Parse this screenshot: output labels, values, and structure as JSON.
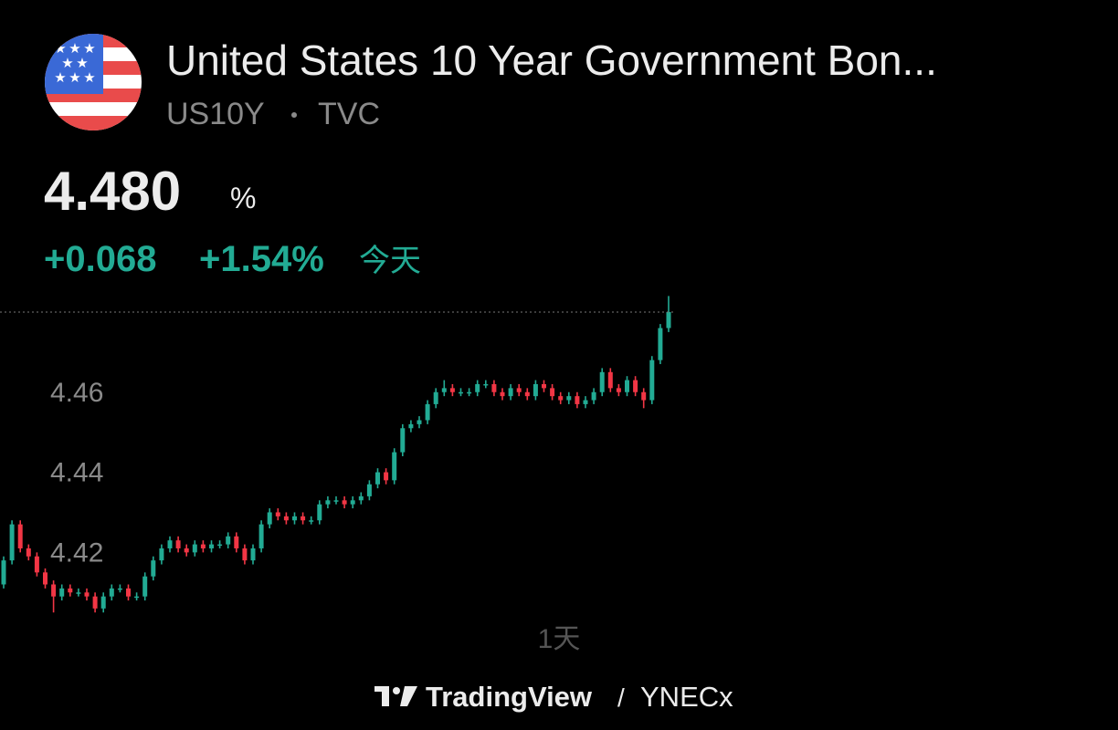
{
  "header": {
    "title": "United States 10 Year Government Bon...",
    "symbol": "US10Y",
    "exchange": "TVC",
    "price": "4.480",
    "unit": "%",
    "change": "+0.068",
    "change_pct": "+1.54%",
    "period": "今天"
  },
  "chart_data": {
    "type": "candlestick",
    "up_color": "#22ab94",
    "down_color": "#f23645",
    "ylim": [
      4.403,
      4.485
    ],
    "yticks": [
      4.42,
      4.44,
      4.46
    ],
    "grid": false,
    "ohlc": [
      [
        4.412,
        4.419,
        4.411,
        4.418
      ],
      [
        4.418,
        4.428,
        4.417,
        4.427
      ],
      [
        4.427,
        4.428,
        4.42,
        4.421
      ],
      [
        4.421,
        4.422,
        4.418,
        4.419
      ],
      [
        4.419,
        4.42,
        4.414,
        4.415
      ],
      [
        4.415,
        4.416,
        4.411,
        4.412
      ],
      [
        4.412,
        4.413,
        4.405,
        4.409
      ],
      [
        4.409,
        4.412,
        4.408,
        4.411
      ],
      [
        4.411,
        4.412,
        4.409,
        4.41
      ],
      [
        4.41,
        4.411,
        4.409,
        4.41
      ],
      [
        4.41,
        4.411,
        4.408,
        4.409
      ],
      [
        4.409,
        4.41,
        4.405,
        4.406
      ],
      [
        4.406,
        4.41,
        4.405,
        4.409
      ],
      [
        4.409,
        4.412,
        4.408,
        4.411
      ],
      [
        4.411,
        4.412,
        4.41,
        4.411
      ],
      [
        4.411,
        4.412,
        4.408,
        4.409
      ],
      [
        4.409,
        4.41,
        4.408,
        4.409
      ],
      [
        4.409,
        4.415,
        4.408,
        4.414
      ],
      [
        4.414,
        4.419,
        4.413,
        4.418
      ],
      [
        4.418,
        4.422,
        4.417,
        4.421
      ],
      [
        4.421,
        4.424,
        4.42,
        4.423
      ],
      [
        4.423,
        4.424,
        4.42,
        4.421
      ],
      [
        4.421,
        4.422,
        4.419,
        4.42
      ],
      [
        4.42,
        4.423,
        4.419,
        4.422
      ],
      [
        4.422,
        4.423,
        4.42,
        4.421
      ],
      [
        4.421,
        4.423,
        4.42,
        4.422
      ],
      [
        4.422,
        4.423,
        4.421,
        4.422
      ],
      [
        4.422,
        4.425,
        4.421,
        4.424
      ],
      [
        4.424,
        4.425,
        4.42,
        4.421
      ],
      [
        4.421,
        4.422,
        4.417,
        4.418
      ],
      [
        4.418,
        4.422,
        4.417,
        4.421
      ],
      [
        4.421,
        4.428,
        4.42,
        4.427
      ],
      [
        4.427,
        4.431,
        4.426,
        4.43
      ],
      [
        4.43,
        4.431,
        4.428,
        4.429
      ],
      [
        4.429,
        4.43,
        4.427,
        4.428
      ],
      [
        4.428,
        4.43,
        4.427,
        4.429
      ],
      [
        4.429,
        4.43,
        4.427,
        4.428
      ],
      [
        4.428,
        4.429,
        4.427,
        4.428
      ],
      [
        4.428,
        4.433,
        4.427,
        4.432
      ],
      [
        4.432,
        4.434,
        4.431,
        4.433
      ],
      [
        4.433,
        4.434,
        4.432,
        4.433
      ],
      [
        4.433,
        4.434,
        4.431,
        4.432
      ],
      [
        4.432,
        4.434,
        4.431,
        4.433
      ],
      [
        4.433,
        4.435,
        4.432,
        4.434
      ],
      [
        4.434,
        4.438,
        4.433,
        4.437
      ],
      [
        4.437,
        4.441,
        4.436,
        4.44
      ],
      [
        4.44,
        4.441,
        4.437,
        4.438
      ],
      [
        4.438,
        4.446,
        4.437,
        4.445
      ],
      [
        4.445,
        4.452,
        4.444,
        4.451
      ],
      [
        4.451,
        4.453,
        4.45,
        4.452
      ],
      [
        4.452,
        4.454,
        4.451,
        4.453
      ],
      [
        4.453,
        4.458,
        4.452,
        4.457
      ],
      [
        4.457,
        4.461,
        4.456,
        4.46
      ],
      [
        4.46,
        4.463,
        4.459,
        4.461
      ],
      [
        4.461,
        4.462,
        4.459,
        4.46
      ],
      [
        4.46,
        4.461,
        4.459,
        4.46
      ],
      [
        4.46,
        4.461,
        4.459,
        4.46
      ],
      [
        4.46,
        4.463,
        4.459,
        4.462
      ],
      [
        4.462,
        4.463,
        4.461,
        4.462
      ],
      [
        4.462,
        4.463,
        4.459,
        4.46
      ],
      [
        4.46,
        4.461,
        4.458,
        4.459
      ],
      [
        4.459,
        4.462,
        4.458,
        4.461
      ],
      [
        4.461,
        4.462,
        4.459,
        4.46
      ],
      [
        4.46,
        4.461,
        4.458,
        4.459
      ],
      [
        4.459,
        4.463,
        4.458,
        4.462
      ],
      [
        4.462,
        4.463,
        4.46,
        4.461
      ],
      [
        4.461,
        4.462,
        4.458,
        4.459
      ],
      [
        4.459,
        4.46,
        4.457,
        4.458
      ],
      [
        4.458,
        4.46,
        4.457,
        4.459
      ],
      [
        4.459,
        4.46,
        4.456,
        4.457
      ],
      [
        4.457,
        4.459,
        4.456,
        4.458
      ],
      [
        4.458,
        4.461,
        4.457,
        4.46
      ],
      [
        4.46,
        4.466,
        4.459,
        4.465
      ],
      [
        4.465,
        4.466,
        4.46,
        4.461
      ],
      [
        4.461,
        4.462,
        4.459,
        4.46
      ],
      [
        4.46,
        4.464,
        4.459,
        4.463
      ],
      [
        4.463,
        4.464,
        4.459,
        4.46
      ],
      [
        4.46,
        4.461,
        4.456,
        4.458
      ],
      [
        4.458,
        4.469,
        4.457,
        4.468
      ],
      [
        4.468,
        4.477,
        4.467,
        4.476
      ],
      [
        4.476,
        4.484,
        4.475,
        4.48
      ]
    ],
    "timeframe": "1天"
  },
  "footer": {
    "brand": "TradingView",
    "user": "YNECx"
  }
}
